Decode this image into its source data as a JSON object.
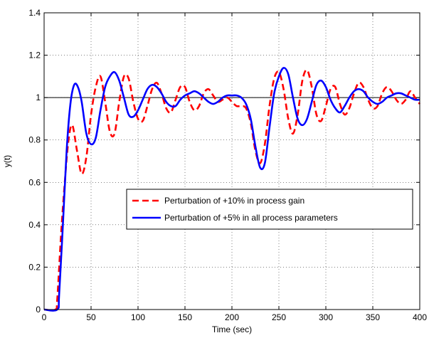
{
  "chart_data": {
    "type": "line",
    "xlabel": "Time (sec)",
    "ylabel": "y(t)",
    "xlim": [
      0,
      400
    ],
    "ylim": [
      0,
      1.4
    ],
    "x_ticks": [
      0,
      50,
      100,
      150,
      200,
      250,
      300,
      350,
      400
    ],
    "y_ticks": [
      0,
      0.2,
      0.4,
      0.6,
      0.8,
      1,
      1.2,
      1.4
    ],
    "x_tick_labels": [
      "0",
      "50",
      "100",
      "150",
      "200",
      "250",
      "300",
      "350",
      "400"
    ],
    "y_tick_labels": [
      "0",
      "0.2",
      "0.4",
      "0.6",
      "0.8",
      "1",
      "1.2",
      "1.4"
    ],
    "grid": true,
    "legend_position": "center-right",
    "reference_line": {
      "y": 1,
      "color": "#000000"
    },
    "series": [
      {
        "name": "Perturbation of +10% in process gain",
        "color": "#ff0000",
        "style": "dashed",
        "x": [
          0,
          12,
          14,
          18,
          22,
          26,
          30,
          35,
          40,
          45,
          50,
          55,
          60,
          65,
          70,
          75,
          80,
          85,
          90,
          95,
          100,
          105,
          110,
          115,
          120,
          125,
          130,
          135,
          140,
          145,
          150,
          155,
          160,
          165,
          170,
          175,
          180,
          185,
          190,
          195,
          200,
          205,
          210,
          215,
          220,
          225,
          230,
          235,
          240,
          245,
          250,
          255,
          260,
          265,
          270,
          275,
          280,
          285,
          290,
          295,
          300,
          305,
          310,
          315,
          320,
          325,
          330,
          335,
          340,
          345,
          350,
          355,
          360,
          365,
          370,
          375,
          380,
          385,
          390,
          395,
          400
        ],
        "y": [
          0,
          0,
          0.05,
          0.35,
          0.6,
          0.8,
          0.87,
          0.75,
          0.64,
          0.72,
          0.92,
          1.05,
          1.1,
          0.98,
          0.84,
          0.83,
          0.98,
          1.1,
          1.09,
          0.98,
          0.9,
          0.89,
          0.96,
          1.04,
          1.07,
          1.02,
          0.95,
          0.93,
          0.99,
          1.05,
          1.05,
          0.98,
          0.94,
          0.96,
          1.02,
          1.04,
          1.01,
          0.98,
          0.99,
          1.0,
          0.98,
          0.96,
          0.96,
          0.95,
          0.88,
          0.75,
          0.69,
          0.78,
          0.96,
          1.09,
          1.12,
          1.04,
          0.9,
          0.83,
          0.92,
          1.08,
          1.13,
          1.05,
          0.92,
          0.89,
          0.96,
          1.04,
          1.05,
          0.97,
          0.92,
          0.95,
          1.02,
          1.07,
          1.05,
          0.99,
          0.95,
          0.96,
          1.02,
          1.05,
          1.03,
          0.99,
          0.97,
          0.99,
          1.03,
          1.0,
          0.97
        ]
      },
      {
        "name": "Perturbation of +5% in all process parameters",
        "color": "#0000ff",
        "style": "solid",
        "x": [
          0,
          14,
          16,
          20,
          24,
          28,
          32,
          36,
          40,
          45,
          50,
          55,
          60,
          65,
          70,
          75,
          80,
          85,
          90,
          95,
          100,
          105,
          110,
          115,
          120,
          125,
          130,
          135,
          140,
          145,
          150,
          155,
          160,
          165,
          170,
          175,
          180,
          185,
          190,
          195,
          200,
          205,
          210,
          215,
          220,
          225,
          230,
          235,
          240,
          245,
          250,
          255,
          260,
          265,
          270,
          275,
          280,
          285,
          290,
          295,
          300,
          305,
          310,
          315,
          320,
          325,
          330,
          335,
          340,
          345,
          350,
          355,
          360,
          365,
          370,
          375,
          380,
          385,
          390,
          395,
          400
        ],
        "y": [
          0,
          0,
          0.07,
          0.4,
          0.75,
          0.97,
          1.06,
          1.05,
          0.98,
          0.83,
          0.78,
          0.81,
          0.94,
          1.05,
          1.1,
          1.12,
          1.08,
          1.0,
          0.92,
          0.91,
          0.94,
          0.99,
          1.04,
          1.06,
          1.05,
          1.02,
          0.98,
          0.96,
          0.96,
          0.99,
          1.01,
          1.02,
          1.03,
          1.02,
          1.0,
          0.98,
          0.97,
          0.98,
          1.0,
          1.01,
          1.01,
          1.01,
          1.0,
          0.97,
          0.9,
          0.77,
          0.67,
          0.69,
          0.86,
          1.02,
          1.1,
          1.14,
          1.11,
          1.0,
          0.9,
          0.87,
          0.9,
          0.98,
          1.06,
          1.08,
          1.05,
          0.99,
          0.95,
          0.93,
          0.96,
          1.0,
          1.03,
          1.04,
          1.03,
          1.0,
          0.98,
          0.97,
          0.98,
          1.0,
          1.01,
          1.02,
          1.02,
          1.01,
          1.0,
          0.99,
          0.99
        ]
      }
    ]
  }
}
